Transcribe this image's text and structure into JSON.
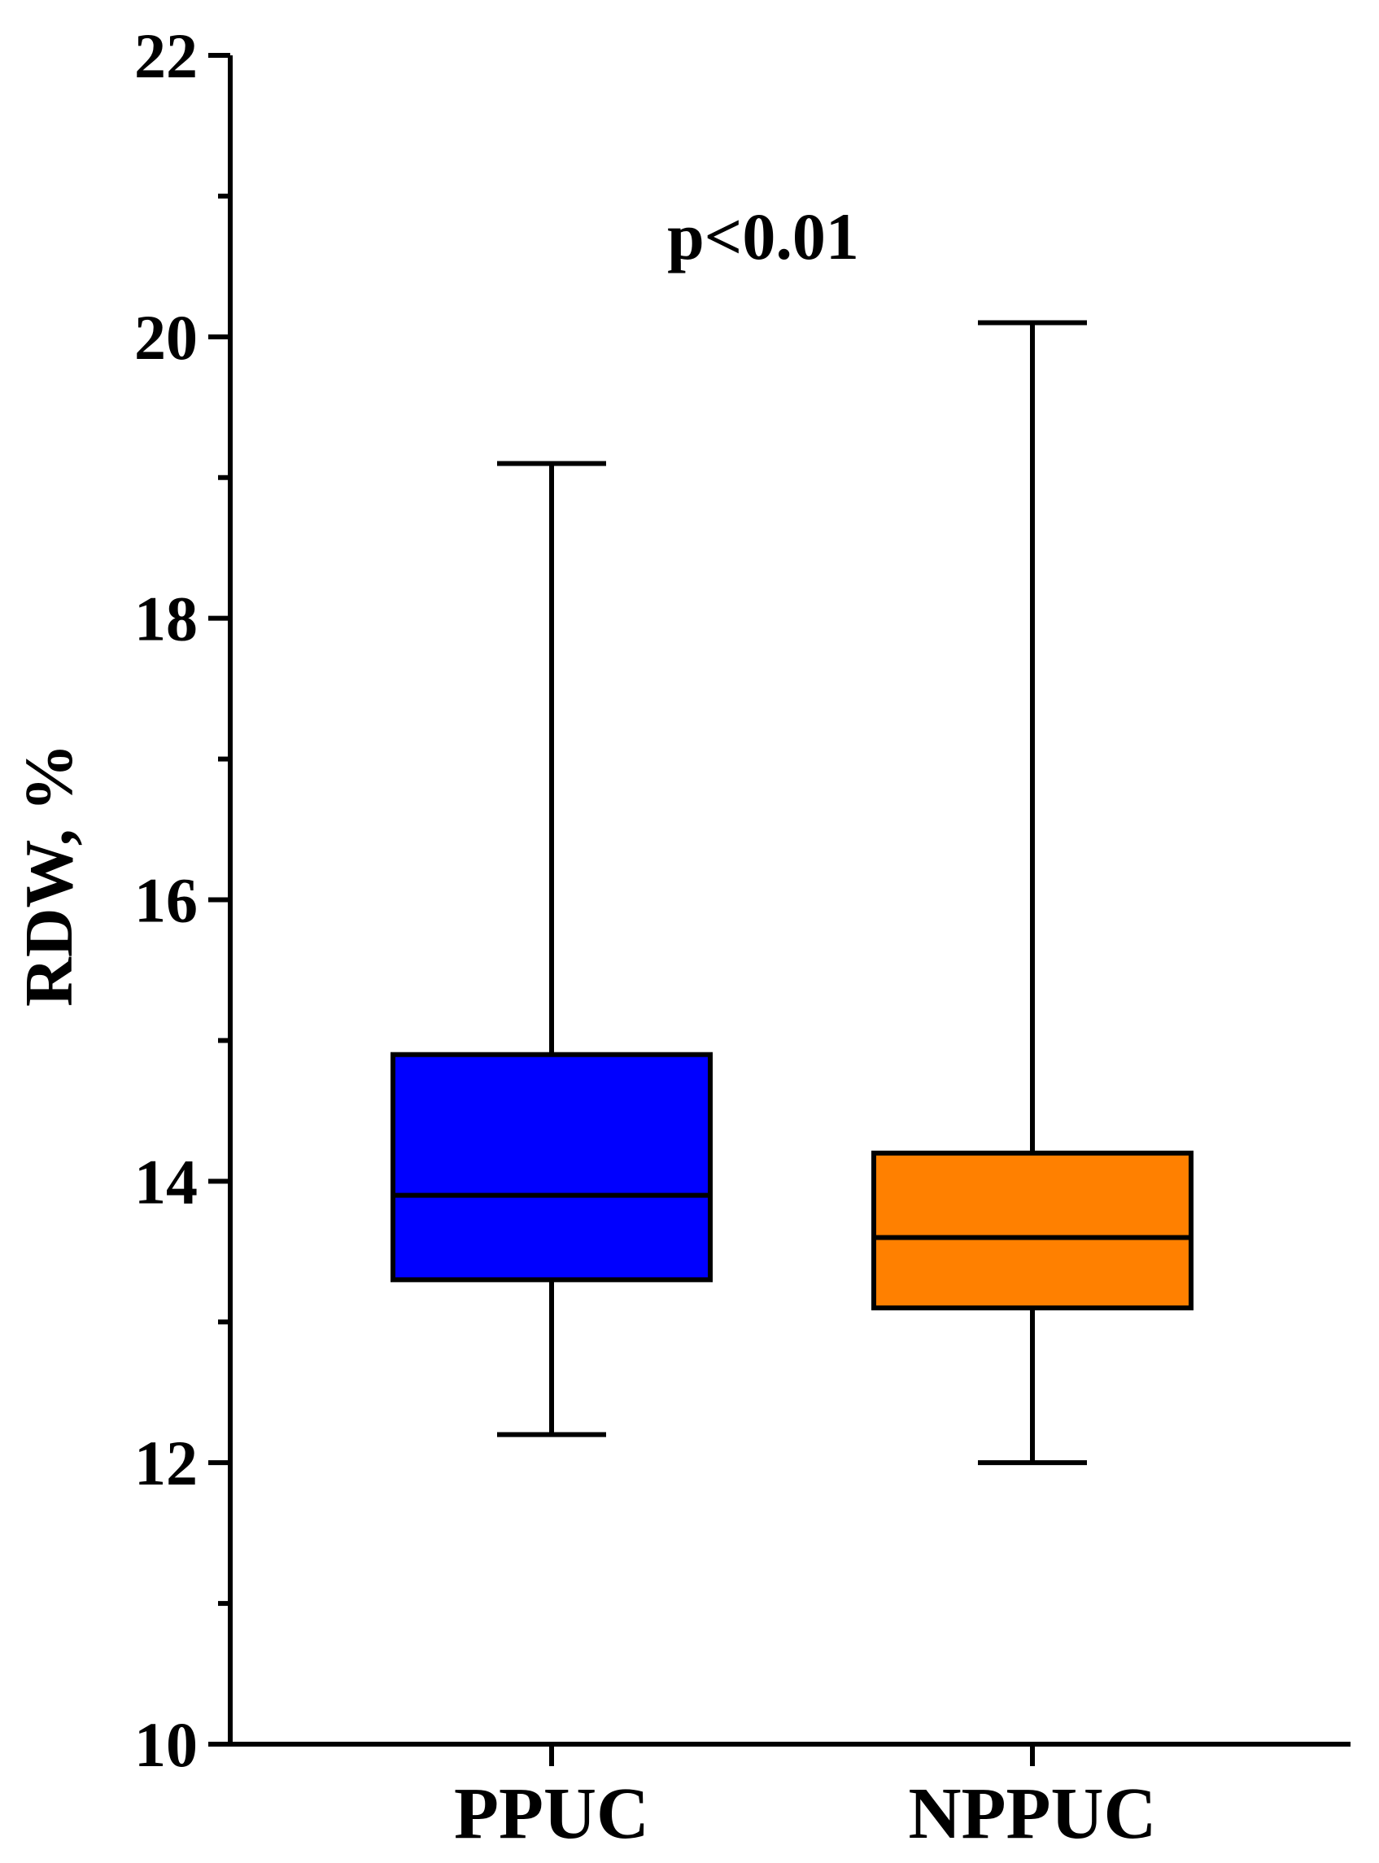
{
  "chart_data": {
    "type": "box",
    "ylabel": "RDW, %",
    "xlabel": "",
    "ylim": [
      10,
      22
    ],
    "y_major_ticks": [
      10,
      12,
      14,
      16,
      18,
      20,
      22
    ],
    "y_minor_ticks": [
      11,
      13,
      15,
      17,
      19,
      21
    ],
    "y_tick_labels": [
      "10",
      "12",
      "14",
      "16",
      "18",
      "20",
      "22"
    ],
    "annotation": "p<0.01",
    "categories": [
      "PPUC",
      "NPPUC"
    ],
    "boxes": [
      {
        "category": "PPUC",
        "min": 12.2,
        "q1": 13.3,
        "median": 13.9,
        "q3": 14.9,
        "max": 19.1,
        "color": "#0000FF"
      },
      {
        "category": "NPPUC",
        "min": 12.0,
        "q1": 13.1,
        "median": 13.6,
        "q3": 14.2,
        "max": 20.1,
        "color": "#FF8000"
      }
    ],
    "grid": false
  }
}
